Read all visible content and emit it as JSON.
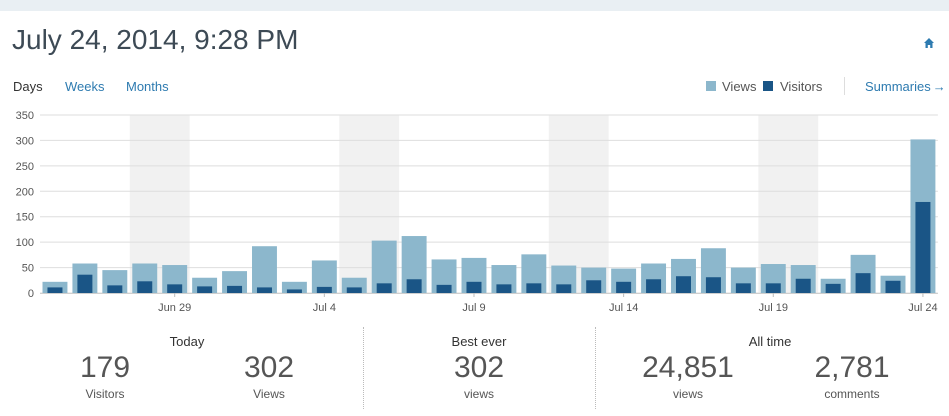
{
  "header": {
    "title": "July 24, 2014, 9:28 PM"
  },
  "periods": {
    "days": "Days",
    "weeks": "Weeks",
    "months": "Months"
  },
  "legend": {
    "views": "Views",
    "visitors": "Visitors",
    "views_color": "#8cb7cc",
    "visitors_color": "#1a5586"
  },
  "summaries_link": "Summaries",
  "icons": {
    "home": "home-icon",
    "summaries_arrow": "arrow-right-icon"
  },
  "chart_data": {
    "type": "bar",
    "ylim": [
      0,
      350
    ],
    "yticks": [
      0,
      50,
      100,
      150,
      200,
      250,
      300,
      350
    ],
    "x_tick_labels": [
      {
        "index": 5,
        "label": "Jun 29"
      },
      {
        "index": 10,
        "label": "Jul 4"
      },
      {
        "index": 15,
        "label": "Jul 9"
      },
      {
        "index": 20,
        "label": "Jul 14"
      },
      {
        "index": 25,
        "label": "Jul 19"
      },
      {
        "index": 30,
        "label": "Jul 24"
      }
    ],
    "weekend_bands": [
      [
        3,
        4
      ],
      [
        10,
        11
      ],
      [
        17,
        18
      ],
      [
        24,
        25
      ]
    ],
    "series": [
      {
        "name": "Views",
        "color": "#8cb7cc",
        "values": [
          22,
          58,
          45,
          58,
          55,
          30,
          43,
          92,
          22,
          64,
          30,
          103,
          112,
          66,
          69,
          55,
          76,
          54,
          50,
          48,
          58,
          67,
          88,
          50,
          57,
          55,
          28,
          75,
          34,
          302
        ]
      },
      {
        "name": "Visitors",
        "color": "#1a5586",
        "values": [
          11,
          36,
          15,
          23,
          17,
          13,
          14,
          11,
          7,
          12,
          11,
          19,
          27,
          16,
          22,
          17,
          19,
          17,
          25,
          22,
          27,
          33,
          31,
          19,
          19,
          28,
          18,
          39,
          24,
          179
        ]
      }
    ],
    "grid": true
  },
  "stats": {
    "today": {
      "heading": "Today",
      "visitors_value": "179",
      "visitors_label": "Visitors",
      "views_value": "302",
      "views_label": "Views"
    },
    "best_ever": {
      "heading": "Best ever",
      "value": "302",
      "label": "views"
    },
    "all_time": {
      "heading": "All time",
      "views_value": "24,851",
      "views_label": "views",
      "comments_value": "2,781",
      "comments_label": "comments"
    }
  }
}
